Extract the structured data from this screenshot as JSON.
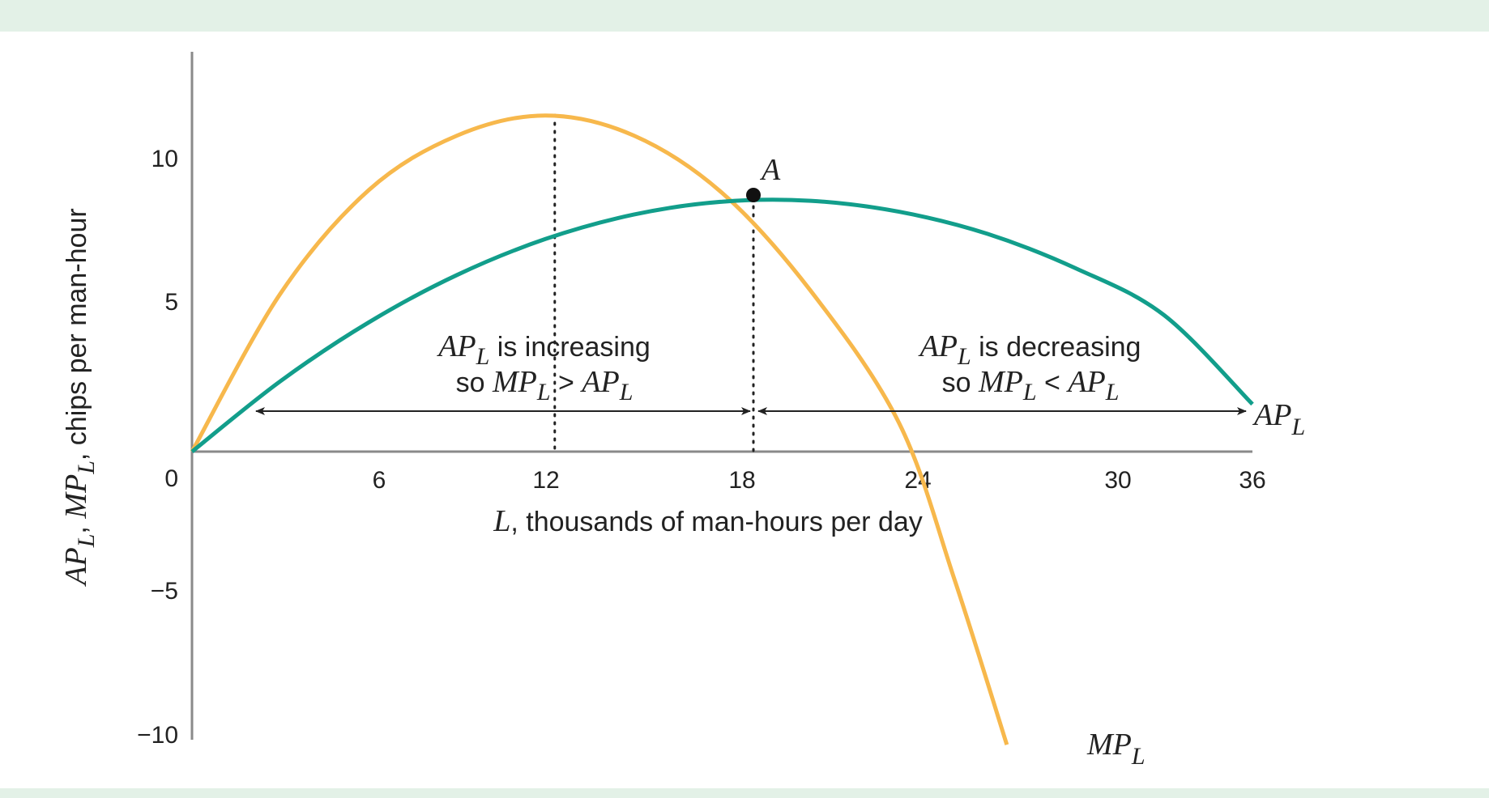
{
  "colors": {
    "band": "#e3f1e7",
    "axis": "#8a8a8a",
    "ap_curve": "#129e8b",
    "mp_curve": "#f7b84c",
    "text": "#222222",
    "point": "#111111"
  },
  "chart_data": {
    "type": "line",
    "xlabel": {
      "var": "L",
      "rest": ", thousands of man-hours per day"
    },
    "ylabel": {
      "ap": "AP",
      "mp": "MP",
      "sub": "L",
      "rest": ", chips per man-hour"
    },
    "x_ticks": [
      "6",
      "12",
      "18",
      "24",
      "30",
      "36"
    ],
    "y_ticks": [
      "10",
      "5",
      "0",
      "−5",
      "−10"
    ],
    "xlim": [
      0,
      36
    ],
    "ylim": [
      -10,
      11.7
    ],
    "grid": false,
    "series": [
      {
        "name": "AP",
        "name_sub": "L",
        "x": [
          0,
          3,
          6,
          9,
          12,
          15,
          18,
          21,
          24,
          27,
          30,
          33,
          36
        ],
        "y": [
          0,
          2.45,
          4.5,
          6.15,
          7.4,
          8.25,
          8.7,
          8.73,
          8.35,
          7.58,
          6.38,
          4.75,
          1.65
        ]
      },
      {
        "name": "MP",
        "name_sub": "L",
        "x": [
          0,
          3,
          6,
          9,
          12,
          15,
          18,
          21,
          24,
          27,
          30
        ],
        "y": [
          0,
          5.5,
          9.1,
          11.0,
          11.7,
          11.0,
          9.0,
          5.6,
          1.0,
          -4.5,
          -10.2
        ]
      }
    ],
    "annotations": {
      "point": {
        "label": "A",
        "x": 19,
        "y": 8.9
      },
      "mp_max_x": 12.7,
      "left_range": {
        "from": 2.2,
        "to": 19
      },
      "right_range": {
        "from": 19,
        "to": 36
      },
      "left_note": {
        "line1_var": "AP",
        "line1_sub": "L",
        "line1_rest": " is increasing",
        "line2_pre": "so ",
        "line2_a": "MP",
        "line2_a_sub": "L",
        "line2_op": " > ",
        "line2_b": "AP",
        "line2_b_sub": "L"
      },
      "right_note": {
        "line1_var": "AP",
        "line1_sub": "L",
        "line1_rest": " is decreasing",
        "line2_pre": "so ",
        "line2_a": "MP",
        "line2_a_sub": "L",
        "line2_op": " < ",
        "line2_b": "AP",
        "line2_b_sub": "L"
      }
    }
  }
}
